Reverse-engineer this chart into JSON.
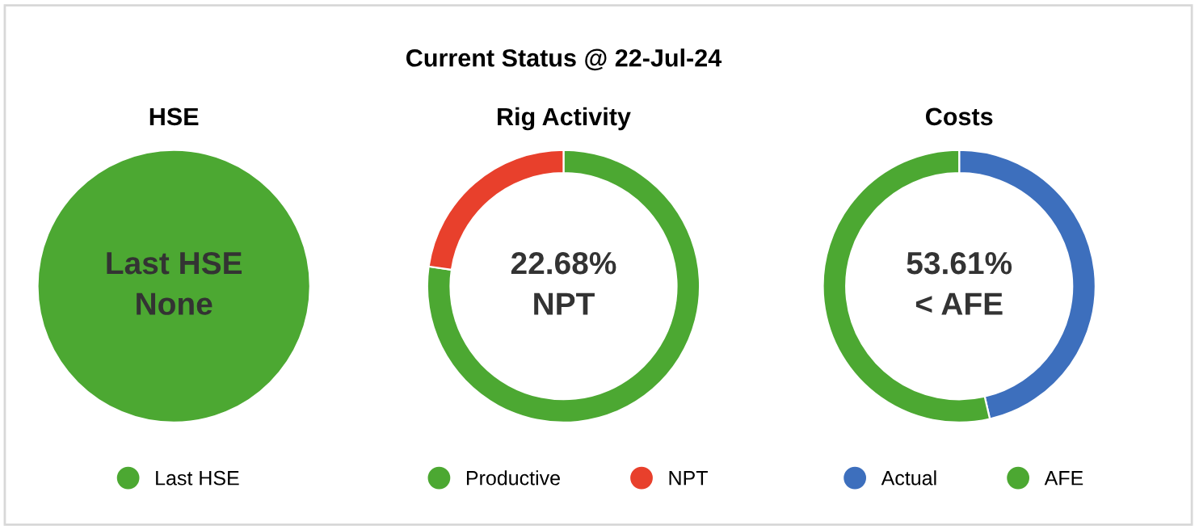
{
  "chart_data": [
    {
      "type": "pie",
      "title": "HSE",
      "categories": [
        "Last HSE"
      ],
      "values": [
        100
      ],
      "colors": [
        "#4ca832"
      ],
      "annotations": [
        "Last HSE\nNone"
      ],
      "legend": "bottom"
    },
    {
      "type": "donut",
      "subtitle": "Current Status @ 22-Jul-24",
      "title": "Rig Activity",
      "categories": [
        "Productive",
        "NPT"
      ],
      "values": [
        77.32,
        22.68
      ],
      "colors": [
        "#4ca832",
        "#e8402c"
      ],
      "annotations": [
        "22.68%\nNPT"
      ],
      "legend": "bottom"
    },
    {
      "type": "donut",
      "title": "Costs",
      "categories": [
        "Actual",
        "AFE"
      ],
      "values": [
        46.39,
        53.61
      ],
      "colors": [
        "#3d6fbd",
        "#4ca832"
      ],
      "annotations": [
        "53.61%\n< AFE"
      ],
      "legend": "bottom"
    }
  ]
}
